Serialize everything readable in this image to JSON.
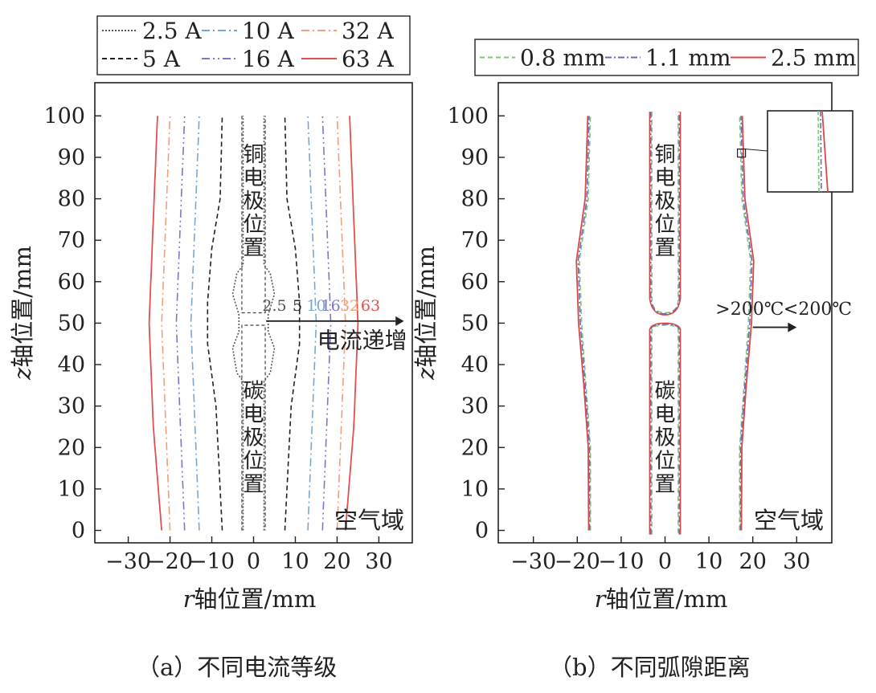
{
  "chart_data": [
    {
      "type": "line",
      "panel": "a",
      "caption": "（a）不同电流等级",
      "xlabel_var": "r",
      "xlabel_rest": "轴位置/mm",
      "ylabel_var": "z",
      "ylabel_rest": "轴位置/mm",
      "xlim": [
        -38,
        38
      ],
      "ylim": [
        -3,
        108
      ],
      "xticks": [
        -30,
        -20,
        -10,
        0,
        10,
        20,
        30
      ],
      "yticks": [
        0,
        10,
        20,
        30,
        40,
        50,
        60,
        70,
        80,
        90,
        100
      ],
      "grid": false,
      "legend_position": "above plot",
      "legend": [
        {
          "label": "2.5 A",
          "color": "#555555",
          "dash": "2 2"
        },
        {
          "label": "10 A",
          "color": "#7aa6d2",
          "dash": "10 4 2 4"
        },
        {
          "label": "32 A",
          "color": "#f0a07a",
          "dash": "10 4 2 4"
        },
        {
          "label": "5 A",
          "color": "#222222",
          "dash": "6 4"
        },
        {
          "label": "16 A",
          "color": "#7a78c8",
          "dash": "10 4 2 4 2 4"
        },
        {
          "label": "63 A",
          "color": "#e05050",
          "dash": ""
        }
      ],
      "series": [
        {
          "name": "2.5 A",
          "half_width_r_by_z": [
            [
              100,
              2.5
            ],
            [
              64,
              2.5
            ],
            [
              62,
              4
            ],
            [
              57,
              5
            ],
            [
              52,
              3.5
            ],
            [
              48,
              3.5
            ],
            [
              44,
              5
            ],
            [
              38,
              4
            ],
            [
              36,
              2.5
            ],
            [
              0,
              2.5
            ]
          ]
        },
        {
          "name": "5 A",
          "half_width_r_by_z": [
            [
              100,
              7.5
            ],
            [
              80,
              8
            ],
            [
              68,
              10
            ],
            [
              55,
              11
            ],
            [
              50,
              11
            ],
            [
              45,
              11
            ],
            [
              30,
              9
            ],
            [
              0,
              7.5
            ]
          ]
        },
        {
          "name": "10 A",
          "half_width_r_by_z": [
            [
              100,
              13
            ],
            [
              75,
              14
            ],
            [
              50,
              15
            ],
            [
              25,
              14
            ],
            [
              0,
              13
            ]
          ]
        },
        {
          "name": "16 A",
          "half_width_r_by_z": [
            [
              100,
              16.5
            ],
            [
              75,
              17.5
            ],
            [
              50,
              18.5
            ],
            [
              25,
              17.5
            ],
            [
              0,
              16.5
            ]
          ]
        },
        {
          "name": "32 A",
          "half_width_r_by_z": [
            [
              100,
              20
            ],
            [
              75,
              21
            ],
            [
              50,
              22
            ],
            [
              25,
              21
            ],
            [
              0,
              20
            ]
          ]
        },
        {
          "name": "63 A",
          "half_width_r_by_z": [
            [
              100,
              23
            ],
            [
              75,
              24
            ],
            [
              50,
              25
            ],
            [
              25,
              24
            ],
            [
              0,
              22
            ]
          ]
        }
      ],
      "annotations": {
        "copper_electrode": "铜电极位置",
        "carbon_electrode": "碳电极位置",
        "current_increase": "电流递增",
        "air_domain": "空气域",
        "line_labels": [
          "2.5",
          "5",
          "10",
          "16",
          "32",
          "63"
        ]
      }
    },
    {
      "type": "line",
      "panel": "b",
      "caption": "（b）不同弧隙距离",
      "xlabel_var": "r",
      "xlabel_rest": "轴位置/mm",
      "ylabel_var": "z",
      "ylabel_rest": "轴位置/mm",
      "xlim": [
        -38,
        38
      ],
      "ylim": [
        -3,
        108
      ],
      "xticks": [
        -30,
        -20,
        -10,
        0,
        10,
        20,
        30
      ],
      "yticks": [
        0,
        10,
        20,
        30,
        40,
        50,
        60,
        70,
        80,
        90,
        100
      ],
      "grid": false,
      "legend_position": "above plot",
      "legend": [
        {
          "label": "0.8 mm",
          "color": "#7ac87a",
          "dash": "6 4"
        },
        {
          "label": "1.1 mm",
          "color": "#6a6ac0",
          "dash": "8 3 2 3"
        },
        {
          "label": "2.5 mm",
          "color": "#d84848",
          "dash": ""
        }
      ],
      "series": [
        {
          "name": "0.8 mm",
          "half_width_r_by_z": [
            [
              100,
              17
            ],
            [
              80,
              17.5
            ],
            [
              65,
              19.5
            ],
            [
              50,
              19
            ],
            [
              35,
              18
            ],
            [
              20,
              17
            ],
            [
              0,
              17
            ]
          ]
        },
        {
          "name": "1.1 mm",
          "half_width_r_by_z": [
            [
              100,
              17.3
            ],
            [
              80,
              17.8
            ],
            [
              65,
              19.8
            ],
            [
              50,
              19.3
            ],
            [
              35,
              18.2
            ],
            [
              20,
              17.2
            ],
            [
              0,
              17.2
            ]
          ]
        },
        {
          "name": "2.5 mm",
          "half_width_r_by_z": [
            [
              100,
              17.6
            ],
            [
              80,
              18.2
            ],
            [
              65,
              20.2
            ],
            [
              50,
              19.7
            ],
            [
              35,
              18.5
            ],
            [
              20,
              17.5
            ],
            [
              0,
              17.4
            ]
          ]
        }
      ],
      "annotations": {
        "copper_electrode": "铜电极位置",
        "carbon_electrode": "碳电极位置",
        "above_200": ">200℃",
        "below_200": "<200℃",
        "air_domain": "空气域"
      }
    }
  ]
}
